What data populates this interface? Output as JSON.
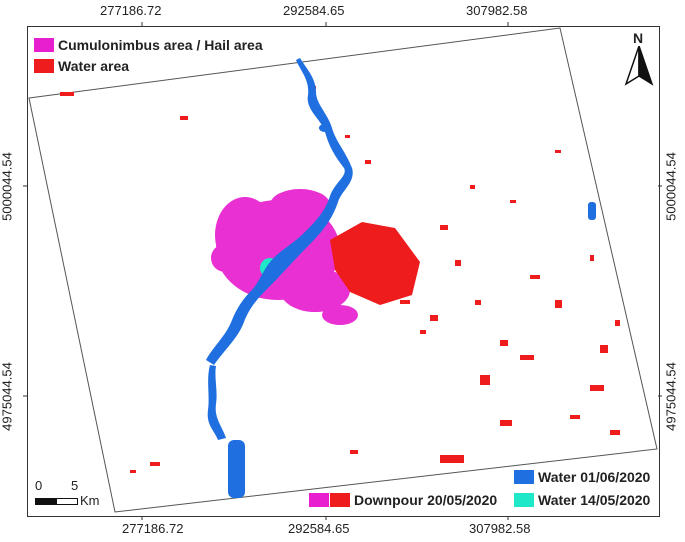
{
  "axes": {
    "x_ticks": [
      "277186.72",
      "292584.65",
      "307982.58"
    ],
    "y_ticks": [
      "5000044.54",
      "4975044.54"
    ]
  },
  "legend_top": [
    {
      "label": "Cumulonimbus area / Hail area",
      "color": "#e81fcf"
    },
    {
      "label": "Water area",
      "color": "#ee1c1c"
    }
  ],
  "legend_bottom": {
    "water_0106": {
      "label": "Water 01/06/2020",
      "color": "#1f6fe0"
    },
    "downpour": {
      "label": "Downpour 20/05/2020",
      "colors": [
        "#e81fcf",
        "#ee1c1c"
      ]
    },
    "water_1405": {
      "label": "Water 14/05/2020",
      "color": "#1ee8c8"
    }
  },
  "north_arrow": {
    "label": "N"
  },
  "scale_bar": {
    "labels": [
      "0",
      "5"
    ],
    "unit": "Km"
  }
}
